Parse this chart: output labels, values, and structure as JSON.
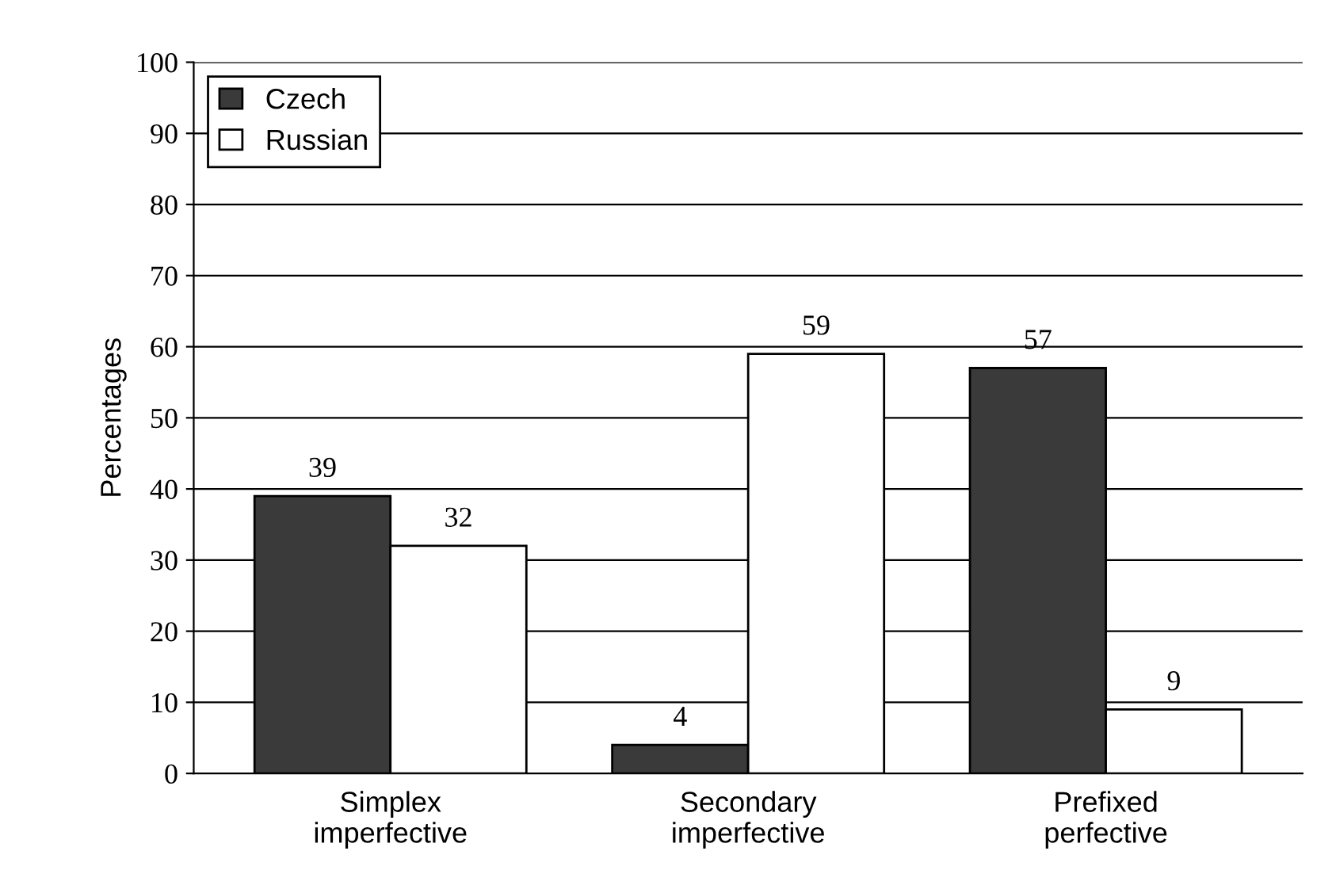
{
  "chart_data": {
    "type": "bar",
    "ylabel": "Percentages",
    "categories": [
      "Simplex\nimperfective",
      "Secondary\nimperfective",
      "Prefixed\nperfective"
    ],
    "series": [
      {
        "name": "Czech",
        "color": "#3a3a3a",
        "values": [
          39,
          4,
          57
        ]
      },
      {
        "name": "Russian",
        "color": "#ffffff",
        "values": [
          32,
          59,
          9
        ]
      }
    ],
    "ylim": [
      0,
      100
    ],
    "yticks": [
      0,
      10,
      20,
      30,
      40,
      50,
      60,
      70,
      80,
      90,
      100
    ],
    "grid": "y",
    "legend": "top left",
    "data_labels": true
  }
}
